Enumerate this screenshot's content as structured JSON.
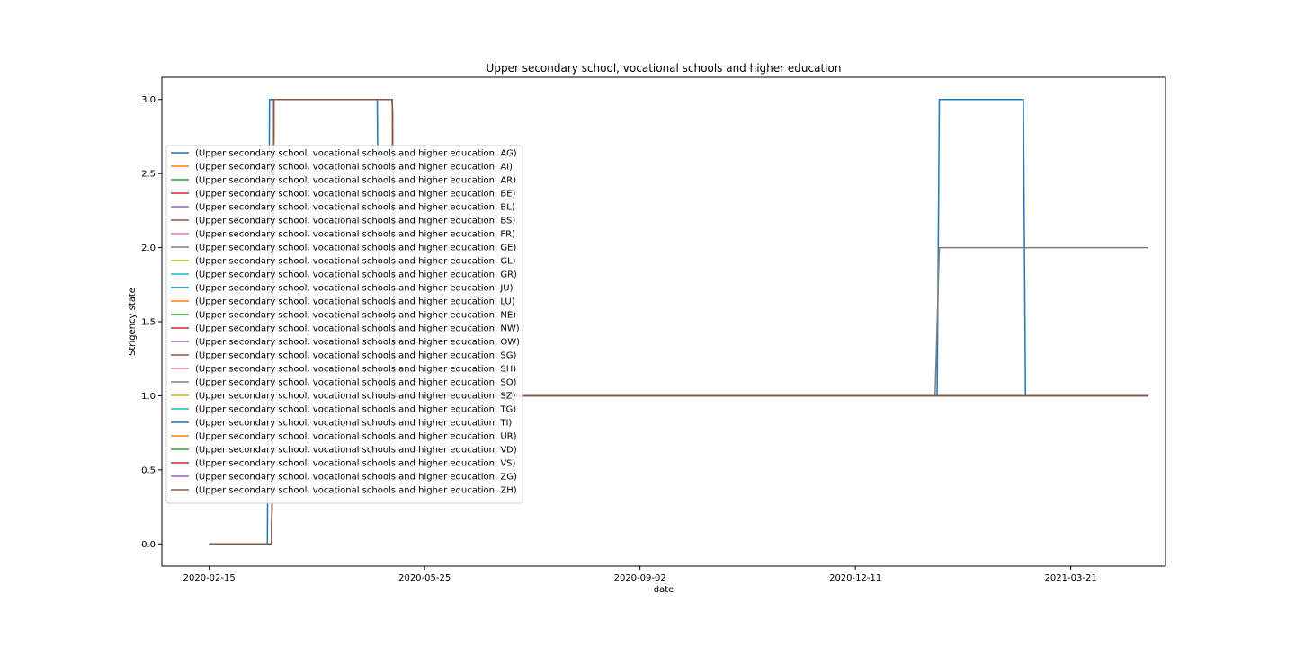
{
  "chart_data": {
    "type": "line",
    "title": "Upper secondary school, vocational schools and higher education",
    "xlabel": "date",
    "ylabel": "Strigency state",
    "x_range": [
      "2020-01-24",
      "2021-05-04"
    ],
    "ylim": [
      -0.15,
      3.15
    ],
    "x_ticks": [
      "2020-02-15",
      "2020-05-25",
      "2020-09-02",
      "2020-12-11",
      "2021-03-21"
    ],
    "y_ticks": [
      "0.0",
      "0.5",
      "1.0",
      "1.5",
      "2.0",
      "2.5",
      "3.0"
    ],
    "grid": false,
    "legend_position": "center-left",
    "colors": [
      "#1f77b4",
      "#ff7f0e",
      "#2ca02c",
      "#d62728",
      "#9467bd",
      "#8c564b",
      "#e377c2",
      "#7f7f7f",
      "#bcbd22",
      "#17becf"
    ],
    "series": [
      {
        "name": "(Upper secondary school, vocational schools and higher education, AG)",
        "points": [
          [
            "2020-02-15",
            0
          ],
          [
            "2020-03-13",
            0
          ],
          [
            "2020-03-14",
            3
          ],
          [
            "2020-05-03",
            3
          ],
          [
            "2020-05-04",
            1
          ],
          [
            "2021-01-18",
            1
          ],
          [
            "2021-01-19",
            3
          ],
          [
            "2021-02-27",
            3
          ],
          [
            "2021-02-28",
            1
          ],
          [
            "2021-04-26",
            1
          ]
        ]
      },
      {
        "name": "(Upper secondary school, vocational schools and higher education, AI)",
        "points": [
          [
            "2020-02-15",
            0
          ],
          [
            "2020-03-15",
            0
          ],
          [
            "2020-03-16",
            3
          ],
          [
            "2020-05-10",
            3
          ],
          [
            "2020-05-11",
            1
          ],
          [
            "2021-04-26",
            1
          ]
        ]
      },
      {
        "name": "(Upper secondary school, vocational schools and higher education, AR)",
        "points": [
          [
            "2020-02-15",
            0
          ],
          [
            "2020-03-15",
            0
          ],
          [
            "2020-03-16",
            3
          ],
          [
            "2020-05-10",
            3
          ],
          [
            "2020-05-11",
            1
          ],
          [
            "2021-04-26",
            1
          ]
        ]
      },
      {
        "name": "(Upper secondary school, vocational schools and higher education, BE)",
        "points": [
          [
            "2020-02-15",
            0
          ],
          [
            "2020-03-15",
            0
          ],
          [
            "2020-03-16",
            3
          ],
          [
            "2020-05-10",
            3
          ],
          [
            "2020-05-11",
            1
          ],
          [
            "2021-04-26",
            1
          ]
        ]
      },
      {
        "name": "(Upper secondary school, vocational schools and higher education, BL)",
        "points": [
          [
            "2020-02-15",
            0
          ],
          [
            "2020-03-15",
            0
          ],
          [
            "2020-03-16",
            3
          ],
          [
            "2020-05-10",
            3
          ],
          [
            "2020-05-11",
            1
          ],
          [
            "2021-04-26",
            1
          ]
        ]
      },
      {
        "name": "(Upper secondary school, vocational schools and higher education, BS)",
        "points": [
          [
            "2020-02-15",
            0
          ],
          [
            "2020-03-15",
            0
          ],
          [
            "2020-03-16",
            3
          ],
          [
            "2020-05-10",
            3
          ],
          [
            "2020-05-11",
            1
          ],
          [
            "2021-04-26",
            1
          ]
        ]
      },
      {
        "name": "(Upper secondary school, vocational schools and higher education, FR)",
        "points": [
          [
            "2020-02-15",
            0
          ],
          [
            "2020-03-15",
            0
          ],
          [
            "2020-03-16",
            3
          ],
          [
            "2020-05-10",
            3
          ],
          [
            "2020-05-11",
            1
          ],
          [
            "2021-04-26",
            1
          ]
        ]
      },
      {
        "name": "(Upper secondary school, vocational schools and higher education, GE)",
        "points": [
          [
            "2020-02-15",
            0
          ],
          [
            "2020-03-15",
            0
          ],
          [
            "2020-03-16",
            3
          ],
          [
            "2020-05-10",
            3
          ],
          [
            "2020-05-11",
            1
          ],
          [
            "2021-01-17",
            1
          ],
          [
            "2021-01-19",
            2
          ],
          [
            "2021-04-26",
            2
          ]
        ]
      },
      {
        "name": "(Upper secondary school, vocational schools and higher education, GL)",
        "points": [
          [
            "2020-02-15",
            0
          ],
          [
            "2020-03-15",
            0
          ],
          [
            "2020-03-16",
            3
          ],
          [
            "2020-05-10",
            3
          ],
          [
            "2020-05-11",
            1
          ],
          [
            "2021-04-26",
            1
          ]
        ]
      },
      {
        "name": "(Upper secondary school, vocational schools and higher education, GR)",
        "points": [
          [
            "2020-02-15",
            0
          ],
          [
            "2020-03-15",
            0
          ],
          [
            "2020-03-16",
            3
          ],
          [
            "2020-05-10",
            3
          ],
          [
            "2020-05-11",
            1
          ],
          [
            "2021-04-26",
            1
          ]
        ]
      },
      {
        "name": "(Upper secondary school, vocational schools and higher education, JU)",
        "points": [
          [
            "2020-02-15",
            0
          ],
          [
            "2020-03-15",
            0
          ],
          [
            "2020-03-16",
            3
          ],
          [
            "2020-05-10",
            3
          ],
          [
            "2020-05-11",
            1
          ],
          [
            "2021-04-26",
            1
          ]
        ]
      },
      {
        "name": "(Upper secondary school, vocational schools and higher education, LU)",
        "points": [
          [
            "2020-02-15",
            0
          ],
          [
            "2020-03-15",
            0
          ],
          [
            "2020-03-16",
            3
          ],
          [
            "2020-05-10",
            3
          ],
          [
            "2020-05-11",
            1
          ],
          [
            "2021-04-26",
            1
          ]
        ]
      },
      {
        "name": "(Upper secondary school, vocational schools and higher education, NE)",
        "points": [
          [
            "2020-02-15",
            0
          ],
          [
            "2020-03-15",
            0
          ],
          [
            "2020-03-16",
            3
          ],
          [
            "2020-05-10",
            3
          ],
          [
            "2020-05-11",
            1
          ],
          [
            "2021-04-26",
            1
          ]
        ]
      },
      {
        "name": "(Upper secondary school, vocational schools and higher education, NW)",
        "points": [
          [
            "2020-02-15",
            0
          ],
          [
            "2020-03-15",
            0
          ],
          [
            "2020-03-16",
            3
          ],
          [
            "2020-05-10",
            3
          ],
          [
            "2020-05-11",
            1
          ],
          [
            "2021-04-26",
            1
          ]
        ]
      },
      {
        "name": "(Upper secondary school, vocational schools and higher education, OW)",
        "points": [
          [
            "2020-02-15",
            0
          ],
          [
            "2020-03-15",
            0
          ],
          [
            "2020-03-16",
            3
          ],
          [
            "2020-05-10",
            3
          ],
          [
            "2020-05-11",
            1
          ],
          [
            "2021-04-26",
            1
          ]
        ]
      },
      {
        "name": "(Upper secondary school, vocational schools and higher education, SG)",
        "points": [
          [
            "2020-02-15",
            0
          ],
          [
            "2020-03-15",
            0
          ],
          [
            "2020-03-16",
            3
          ],
          [
            "2020-05-10",
            3
          ],
          [
            "2020-05-11",
            1
          ],
          [
            "2021-04-26",
            1
          ]
        ]
      },
      {
        "name": "(Upper secondary school, vocational schools and higher education, SH)",
        "points": [
          [
            "2020-02-15",
            0
          ],
          [
            "2020-03-15",
            0
          ],
          [
            "2020-03-16",
            3
          ],
          [
            "2020-05-10",
            3
          ],
          [
            "2020-05-11",
            1
          ],
          [
            "2021-04-26",
            1
          ]
        ]
      },
      {
        "name": "(Upper secondary school, vocational schools and higher education, SO)",
        "points": [
          [
            "2020-02-15",
            0
          ],
          [
            "2020-03-15",
            0
          ],
          [
            "2020-03-16",
            3
          ],
          [
            "2020-05-10",
            3
          ],
          [
            "2020-05-11",
            1
          ],
          [
            "2021-04-26",
            1
          ]
        ]
      },
      {
        "name": "(Upper secondary school, vocational schools and higher education, SZ)",
        "points": [
          [
            "2020-02-15",
            0
          ],
          [
            "2020-03-15",
            0
          ],
          [
            "2020-03-16",
            3
          ],
          [
            "2020-05-10",
            3
          ],
          [
            "2020-05-11",
            1
          ],
          [
            "2021-04-26",
            1
          ]
        ]
      },
      {
        "name": "(Upper secondary school, vocational schools and higher education, TG)",
        "points": [
          [
            "2020-02-15",
            0
          ],
          [
            "2020-03-15",
            0
          ],
          [
            "2020-03-16",
            3
          ],
          [
            "2020-05-10",
            3
          ],
          [
            "2020-05-11",
            1
          ],
          [
            "2021-04-26",
            1
          ]
        ]
      },
      {
        "name": "(Upper secondary school, vocational schools and higher education, TI)",
        "points": [
          [
            "2020-02-15",
            0
          ],
          [
            "2020-03-15",
            0
          ],
          [
            "2020-03-16",
            3
          ],
          [
            "2020-05-10",
            3
          ],
          [
            "2020-05-11",
            1
          ],
          [
            "2021-04-26",
            1
          ]
        ]
      },
      {
        "name": "(Upper secondary school, vocational schools and higher education, UR)",
        "points": [
          [
            "2020-02-15",
            0
          ],
          [
            "2020-03-15",
            0
          ],
          [
            "2020-03-16",
            3
          ],
          [
            "2020-05-10",
            3
          ],
          [
            "2020-05-11",
            1
          ],
          [
            "2021-04-26",
            1
          ]
        ]
      },
      {
        "name": "(Upper secondary school, vocational schools and higher education, VD)",
        "points": [
          [
            "2020-02-15",
            0
          ],
          [
            "2020-03-15",
            0
          ],
          [
            "2020-03-16",
            3
          ],
          [
            "2020-05-10",
            3
          ],
          [
            "2020-05-11",
            1
          ],
          [
            "2021-04-26",
            1
          ]
        ]
      },
      {
        "name": "(Upper secondary school, vocational schools and higher education, VS)",
        "points": [
          [
            "2020-02-15",
            0
          ],
          [
            "2020-03-15",
            0
          ],
          [
            "2020-03-16",
            3
          ],
          [
            "2020-05-10",
            3
          ],
          [
            "2020-05-11",
            1
          ],
          [
            "2021-04-26",
            1
          ]
        ]
      },
      {
        "name": "(Upper secondary school, vocational schools and higher education, ZG)",
        "points": [
          [
            "2020-02-15",
            0
          ],
          [
            "2020-03-15",
            0
          ],
          [
            "2020-03-16",
            3
          ],
          [
            "2020-05-10",
            3
          ],
          [
            "2020-05-11",
            1
          ],
          [
            "2021-04-26",
            1
          ]
        ]
      },
      {
        "name": "(Upper secondary school, vocational schools and higher education, ZH)",
        "points": [
          [
            "2020-02-15",
            0
          ],
          [
            "2020-03-15",
            0
          ],
          [
            "2020-03-16",
            3
          ],
          [
            "2020-05-10",
            3
          ],
          [
            "2020-05-11",
            1
          ],
          [
            "2021-04-26",
            1
          ]
        ]
      }
    ]
  }
}
